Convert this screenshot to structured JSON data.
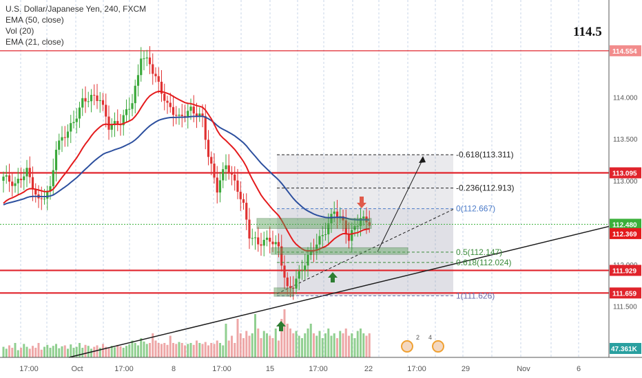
{
  "legend": {
    "symbol": "U.S. Dollar/Japanese Yen, 240, FXCM",
    "ind1": "EMA (50, close)",
    "ind2": "Vol (20)",
    "ind3": "EMA (21, close)"
  },
  "annotation_price": "114.5",
  "colors": {
    "bull": "#26a69a",
    "bull_fill": "#3aa83a",
    "bear": "#e03131",
    "ema21": "#e41a1c",
    "ema50": "#2c4f9e",
    "hline": "#e0232b",
    "grid": "#9db7d6",
    "trend": "#1a1a1a"
  },
  "chart_data": {
    "type": "candlestick",
    "title": "U.S. Dollar/Japanese Yen, 240, FXCM",
    "ylim": [
      111.3,
      114.75
    ],
    "y_ticks": [
      "114.000",
      "113.500",
      "113.000",
      "112.500",
      "112.000",
      "111.500"
    ],
    "x_ticks": [
      "17:00",
      "Oct",
      "17:00",
      "8",
      "17:00",
      "15",
      "17:00",
      "22",
      "17:00",
      "29",
      "Nov",
      "6"
    ],
    "horizontal_levels": [
      {
        "value": 114.554,
        "label": "114.554"
      },
      {
        "value": 113.095,
        "label": "113.095"
      },
      {
        "value": 111.929,
        "label": "111.929"
      },
      {
        "value": 111.659,
        "label": "111.659"
      }
    ],
    "last_price": {
      "value": 112.48,
      "label": "112.480"
    },
    "ema21_last": {
      "value": 112.369,
      "label": "112.369"
    },
    "volume_last": "47.361K",
    "fibonacci": [
      {
        "ratio": "-0.618",
        "value": 113.311,
        "label": "-0.618(113.311)"
      },
      {
        "ratio": "-0.236",
        "value": 112.913,
        "label": "-0.236(112.913)"
      },
      {
        "ratio": "0",
        "value": 112.667,
        "label": "0(112.667)"
      },
      {
        "ratio": "0.5",
        "value": 112.147,
        "label": "0.5(112.147)"
      },
      {
        "ratio": "0.618",
        "value": 112.024,
        "label": "0.618(112.024)"
      },
      {
        "ratio": "1",
        "value": 111.626,
        "label": "1(111.626)"
      }
    ],
    "close_path": [
      [
        0,
        113.05
      ],
      [
        4,
        112.95
      ],
      [
        8,
        113.12
      ],
      [
        12,
        112.75
      ],
      [
        16,
        112.9
      ],
      [
        18,
        113.4
      ],
      [
        21,
        113.55
      ],
      [
        24,
        113.7
      ],
      [
        27,
        113.95
      ],
      [
        30,
        114.0
      ],
      [
        33,
        113.98
      ],
      [
        36,
        113.65
      ],
      [
        40,
        113.7
      ],
      [
        44,
        113.95
      ],
      [
        46,
        114.25
      ],
      [
        47,
        114.5
      ],
      [
        50,
        114.4
      ],
      [
        53,
        114.15
      ],
      [
        56,
        113.9
      ],
      [
        60,
        113.75
      ],
      [
        64,
        113.85
      ],
      [
        68,
        113.75
      ],
      [
        70,
        113.3
      ],
      [
        73,
        112.9
      ],
      [
        76,
        113.2
      ],
      [
        80,
        112.9
      ],
      [
        82,
        112.7
      ],
      [
        84,
        112.35
      ],
      [
        87,
        112.25
      ],
      [
        91,
        112.3
      ],
      [
        94,
        112.2
      ],
      [
        96,
        111.85
      ],
      [
        97,
        111.7
      ],
      [
        99,
        111.75
      ],
      [
        102,
        111.95
      ],
      [
        105,
        112.15
      ],
      [
        108,
        112.3
      ],
      [
        110,
        112.4
      ],
      [
        113,
        112.65
      ],
      [
        116,
        112.5
      ],
      [
        118,
        112.3
      ],
      [
        120,
        112.45
      ],
      [
        122,
        112.55
      ],
      [
        125,
        112.5
      ]
    ],
    "volume": [
      0.22,
      0.18,
      0.25,
      0.2,
      0.3,
      0.15,
      0.2,
      0.28,
      0.22,
      0.18,
      0.24,
      0.2,
      0.3,
      0.16,
      0.22,
      0.26,
      0.2,
      0.24,
      0.28,
      0.19,
      0.23,
      0.25,
      0.18,
      0.27,
      0.2,
      0.22,
      0.3,
      0.2,
      0.26,
      0.24,
      0.18,
      0.22,
      0.25,
      0.2,
      0.28,
      0.22,
      0.19,
      0.24,
      0.21,
      0.26,
      0.23,
      0.2,
      0.24,
      0.27,
      0.35,
      0.3,
      0.25,
      0.4,
      0.33,
      0.28,
      0.3,
      0.5,
      0.35,
      0.3,
      0.28,
      0.3,
      0.26,
      0.45,
      0.3,
      0.28,
      0.32,
      0.3,
      0.25,
      0.28,
      0.3,
      0.26,
      0.35,
      0.3,
      0.28,
      0.32,
      0.25,
      0.3,
      0.28,
      0.35,
      0.3,
      0.25,
      0.7,
      0.35,
      0.45,
      0.3,
      0.8,
      0.5,
      0.4,
      0.55,
      0.45,
      0.5,
      0.9,
      0.6,
      0.4,
      0.55,
      0.5,
      0.45,
      0.4,
      0.6,
      0.35,
      0.8,
      1.0,
      0.7,
      0.6,
      0.5,
      0.55,
      0.45,
      0.4,
      0.5,
      0.6,
      0.7,
      0.5,
      0.45,
      0.55,
      0.4,
      0.5,
      0.6,
      0.45,
      0.5,
      0.4,
      0.55,
      0.5,
      0.6,
      0.45,
      0.5,
      0.4,
      0.55,
      0.6,
      0.5,
      0.45,
      0.5
    ]
  },
  "event_icons": {
    "label1": "2",
    "label2": "4"
  }
}
